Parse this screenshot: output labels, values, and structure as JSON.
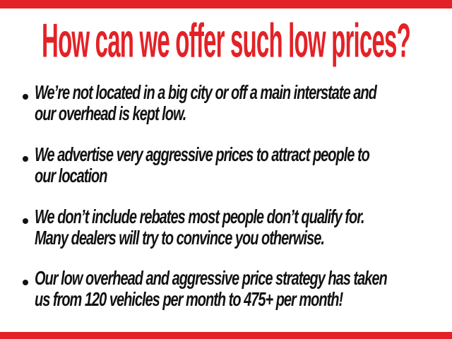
{
  "page": {
    "title": "How can we offer such low prices?",
    "accent_color": "#e32227",
    "text_color": "#121212"
  },
  "bullets": [
    {
      "lines": [
        "We’re not located in a big city or off a main interstate and",
        "our overhead is kept low."
      ]
    },
    {
      "lines": [
        "We advertise very aggressive prices to attract people to",
        "our location"
      ]
    },
    {
      "lines": [
        "We don’t include rebates most people don’t qualify for.",
        "Many dealers will try to convince you otherwise."
      ]
    },
    {
      "lines": [
        "Our low overhead and aggressive price strategy has taken",
        "us from 120 vehicles per month to 475+ per month!"
      ]
    }
  ]
}
